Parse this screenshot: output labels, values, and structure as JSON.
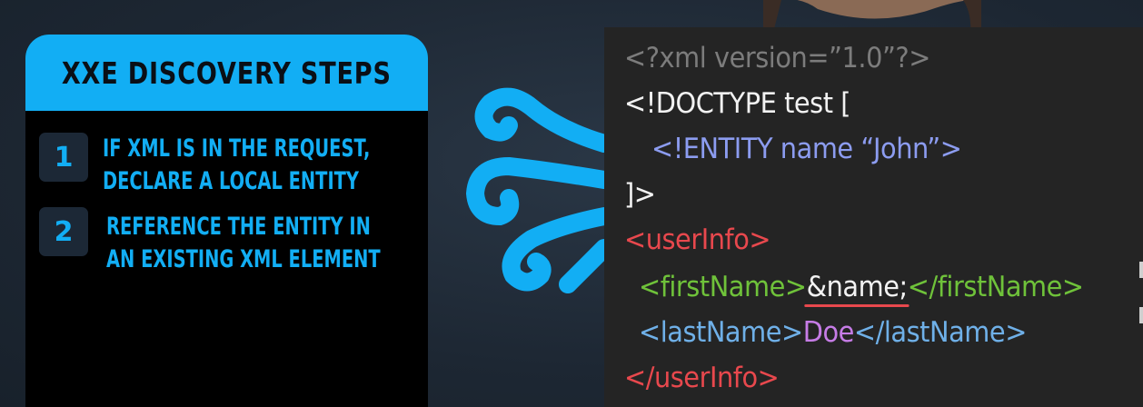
{
  "steps_panel": {
    "title": "XXE DISCOVERY STEPS",
    "steps": [
      {
        "number": "1",
        "line1": "IF XML IS IN THE REQUEST,",
        "line2": "DECLARE A LOCAL ENTITY"
      },
      {
        "number": "2",
        "line1": "REFERENCE THE ENTITY IN",
        "line2": "AN EXISTING XML ELEMENT"
      }
    ]
  },
  "code": {
    "line1": "<?xml version=”1.0”?>",
    "line2": "<!DOCTYPE test [",
    "line3": "<!ENTITY name “John”>",
    "line4": "]>",
    "line5": "<userInfo>",
    "line6_open": "<firstName>",
    "line6_entity": "&name;",
    "line6_close": "</firstName>",
    "line7_open": "<lastName>",
    "line7_value": "Doe",
    "line7_close": "</lastName>",
    "line8": "</userInfo>"
  },
  "colors": {
    "accent": "#12aef4",
    "panel_bg": "#000000",
    "code_bg": "#242424",
    "xml_decl": "#7c7c7c",
    "doctype": "#f2f2f2",
    "entity": "#8c9cf0",
    "root_tag": "#e8484d",
    "first_name_tag": "#6fc23a",
    "last_name_tag": "#6fb0e8",
    "value": "#c67ce6"
  },
  "icons": {
    "logo": "octopus-logo-icon"
  }
}
